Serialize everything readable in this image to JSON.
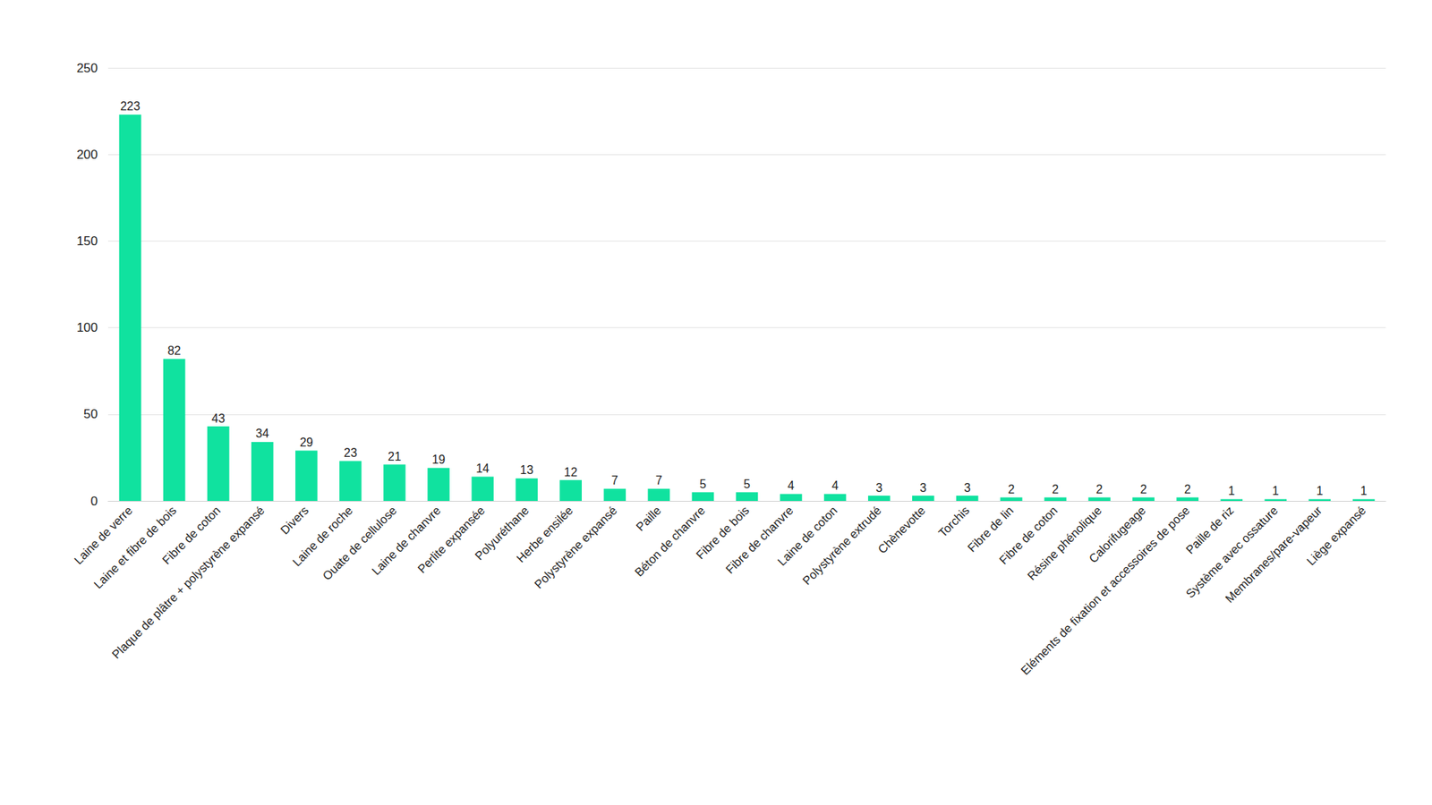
{
  "chart_data": {
    "type": "bar",
    "categories": [
      "Laine de verre",
      "Laine et fibre de bois",
      "Fibre de coton",
      "Plaque de plâtre + polystyrène expansé",
      "Divers",
      "Laine de roche",
      "Ouate de cellulose",
      "Laine de chanvre",
      "Perlite expansée",
      "Polyuréthane",
      "Herbe ensilée",
      "Polystyrène expansé",
      "Paille",
      "Béton de chanvre",
      "Fibre de bois",
      "Fibre de chanvre",
      "Laine de coton",
      "Polystyrène extrudé",
      "Chènevotte",
      "Torchis",
      "Fibre de lin",
      "Fibre de coton",
      "Résine phénolique",
      "Calorifugeage",
      "Eléments de fixation et accessoires de pose",
      "Paille de riz",
      "Système avec ossature",
      "Membranes/pare-vapeur",
      "Liège expansé"
    ],
    "values": [
      223,
      82,
      43,
      34,
      29,
      23,
      21,
      19,
      14,
      13,
      12,
      7,
      7,
      5,
      5,
      4,
      4,
      3,
      3,
      3,
      2,
      2,
      2,
      2,
      2,
      1,
      1,
      1,
      1
    ],
    "color": "#10e29f",
    "ylim": [
      0,
      250
    ],
    "yticks": [
      0,
      50,
      100,
      150,
      200,
      250
    ],
    "grid": true,
    "data_labels": true
  }
}
